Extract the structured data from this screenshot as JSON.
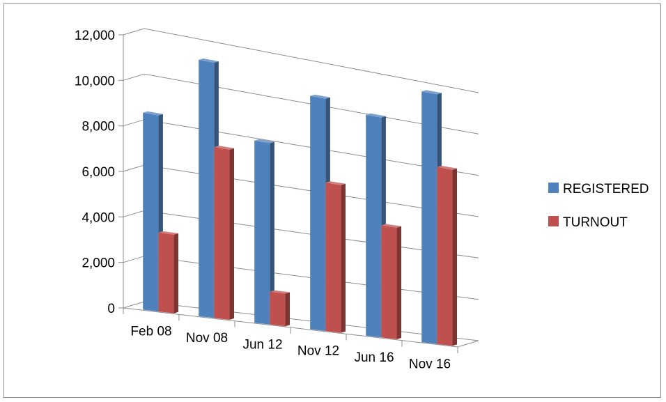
{
  "chart_data": {
    "type": "bar",
    "style": "3d-clustered-column",
    "categories": [
      "Feb 08",
      "Nov 08",
      "Jun 12",
      "Nov 12",
      "Jun 16",
      "Nov 16"
    ],
    "series": [
      {
        "name": "REGISTERED",
        "color": "#4f81bd",
        "values": [
          8700,
          11500,
          8300,
          10800,
          10400,
          12000
        ]
      },
      {
        "name": "TURNOUT",
        "color": "#c0504d",
        "values": [
          3500,
          7700,
          1500,
          6900,
          5300,
          8500
        ]
      }
    ],
    "y_ticks": [
      "0",
      "2,000",
      "4,000",
      "6,000",
      "8,000",
      "10,000",
      "12,000"
    ],
    "ylim": [
      0,
      12000
    ],
    "grid": true,
    "legend_position": "right"
  }
}
